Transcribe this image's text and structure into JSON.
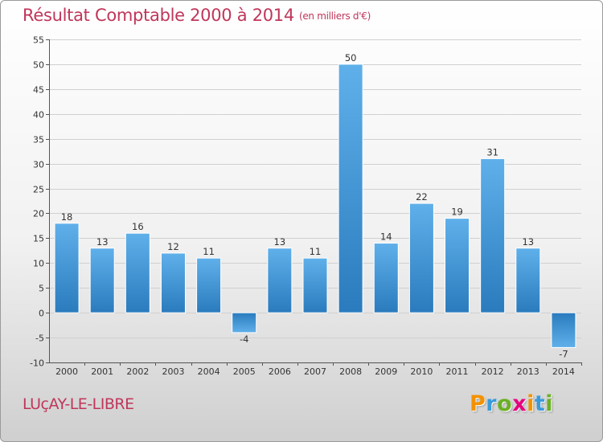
{
  "title": "Résultat Comptable 2000 à 2014",
  "unit": "(en milliers d'€)",
  "commune": "LUçAY-LE-LIBRE",
  "logo": {
    "letters": [
      "P",
      "r",
      "o",
      "x",
      "i",
      "t",
      "i"
    ],
    "colors": [
      "#f39200",
      "#3a9ad9",
      "#6ab023",
      "#e6007e",
      "#f39200",
      "#3a9ad9",
      "#6ab023"
    ]
  },
  "colors": {
    "bar_top": "#5fb0ea",
    "bar_bottom": "#2a7bbd",
    "title": "#c0365a"
  },
  "chart_data": {
    "type": "bar",
    "title": "Résultat Comptable 2000 à 2014",
    "xlabel": "",
    "ylabel": "",
    "ylim": [
      -10,
      55
    ],
    "yticks": [
      -10,
      -5,
      0,
      5,
      10,
      15,
      20,
      25,
      30,
      35,
      40,
      45,
      50,
      55
    ],
    "grid": true,
    "categories": [
      "2000",
      "2001",
      "2002",
      "2003",
      "2004",
      "2005",
      "2006",
      "2007",
      "2008",
      "2009",
      "2010",
      "2011",
      "2012",
      "2013",
      "2014"
    ],
    "values": [
      18,
      13,
      16,
      12,
      11,
      -4,
      13,
      11,
      50,
      14,
      22,
      19,
      31,
      13,
      -7
    ]
  }
}
